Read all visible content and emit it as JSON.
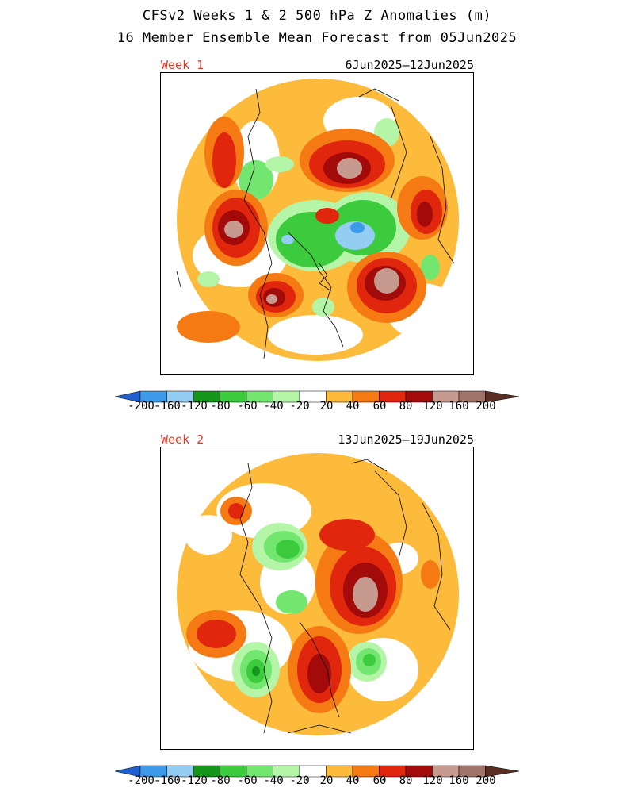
{
  "title_line1": "CFSv2 Weeks 1 & 2 500 hPa Z Anomalies (m)",
  "title_line2": "16 Member Ensemble Mean Forecast from 05Jun2025",
  "panels": [
    {
      "week_label": "Week 1",
      "date_range": "6Jun2025‒12Jun2025"
    },
    {
      "week_label": "Week 2",
      "date_range": "13Jun2025‒19Jun2025"
    }
  ],
  "colorbar": {
    "labels": [
      "-200",
      "-160",
      "-120",
      "-80",
      "-60",
      "-40",
      "-20",
      "20",
      "40",
      "60",
      "80",
      "120",
      "160",
      "200"
    ],
    "colors": [
      "#1f5fcf",
      "#3d9ae8",
      "#94cdf2",
      "#14961b",
      "#3ccb3c",
      "#72e66e",
      "#b4f5a8",
      "#ffffff",
      "#fdbb3c",
      "#f57a14",
      "#e0260d",
      "#a30a0a",
      "#c69a8e",
      "#a07468",
      "#5a2e22"
    ]
  }
}
